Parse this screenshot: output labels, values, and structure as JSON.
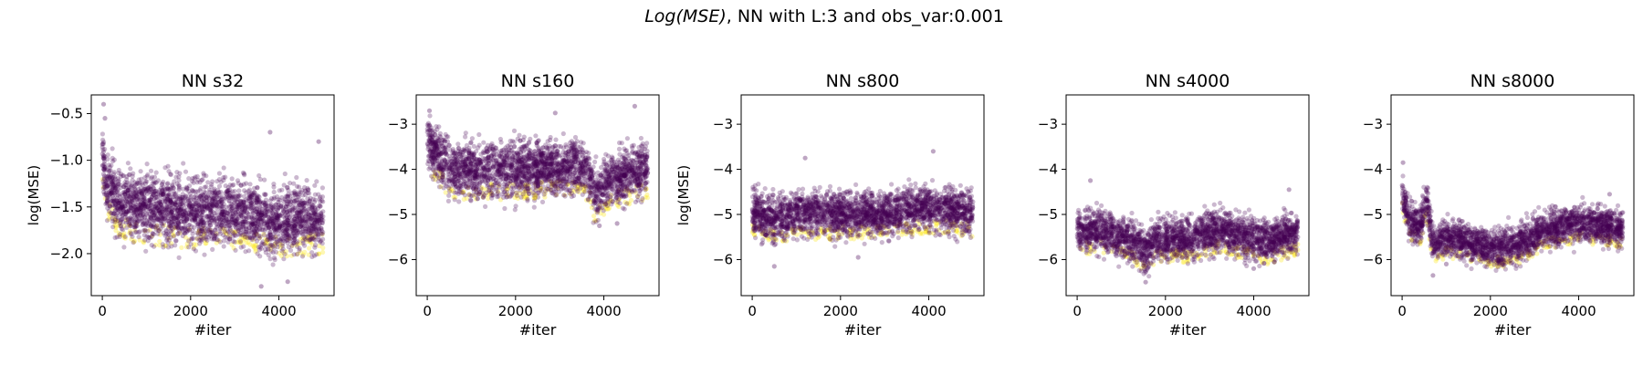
{
  "figure": {
    "suptitle_italic": "Log(MSE)",
    "suptitle_rest": ", NN with L:3 and obs_var:0.001"
  },
  "colors": {
    "main": "#440154",
    "low": "#fde725",
    "frame": "#000000"
  },
  "chart_data": [
    {
      "type": "scatter",
      "title": "NN s32",
      "xlabel": "#iter",
      "ylabel": "log(MSE)",
      "xlim": [
        -250,
        5250
      ],
      "ylim": [
        -2.45,
        -0.3
      ],
      "xticks": [
        0,
        2000,
        4000
      ],
      "yticks": [
        -2.0,
        -1.5,
        -1.0,
        -0.5
      ],
      "ytick_labels": [
        "−2.0",
        "−1.5",
        "−1.0",
        "−0.5"
      ],
      "series_points": 5000,
      "trend": [
        [
          0,
          -0.9
        ],
        [
          100,
          -1.25
        ],
        [
          400,
          -1.45
        ],
        [
          1000,
          -1.5
        ],
        [
          2000,
          -1.55
        ],
        [
          3000,
          -1.55
        ],
        [
          4000,
          -1.65
        ],
        [
          5000,
          -1.6
        ]
      ],
      "spread": 0.25,
      "outliers_top": [
        [
          30,
          -0.4
        ],
        [
          60,
          -0.55
        ],
        [
          3800,
          -0.7
        ],
        [
          4900,
          -0.8
        ]
      ],
      "outliers_bottom": [
        [
          3600,
          -2.35
        ],
        [
          4200,
          -2.3
        ]
      ]
    },
    {
      "type": "scatter",
      "title": "NN s160",
      "xlabel": "#iter",
      "ylabel": "",
      "xlim": [
        -250,
        5250
      ],
      "ylim": [
        -6.8,
        -2.35
      ],
      "xticks": [
        0,
        2000,
        4000
      ],
      "yticks": [
        -6,
        -5,
        -4,
        -3
      ],
      "ytick_labels": [
        "−6",
        "−5",
        "−4",
        "−3"
      ],
      "series_points": 5000,
      "trend": [
        [
          0,
          -3.3
        ],
        [
          150,
          -3.6
        ],
        [
          500,
          -3.95
        ],
        [
          1000,
          -4.05
        ],
        [
          2000,
          -4.0
        ],
        [
          3000,
          -3.95
        ],
        [
          3600,
          -4.0
        ],
        [
          3800,
          -4.5
        ],
        [
          4200,
          -4.2
        ],
        [
          5000,
          -4.0
        ]
      ],
      "spread": 0.42,
      "outliers_top": [
        [
          50,
          -2.7
        ],
        [
          4700,
          -2.6
        ],
        [
          2900,
          -2.75
        ]
      ],
      "outliers_bottom": [
        [
          3900,
          -5.25
        ],
        [
          4300,
          -5.2
        ]
      ]
    },
    {
      "type": "scatter",
      "title": "NN s800",
      "xlabel": "#iter",
      "ylabel": "log(MSE)",
      "xlim": [
        -250,
        5250
      ],
      "ylim": [
        -6.8,
        -2.35
      ],
      "xticks": [
        0,
        2000,
        4000
      ],
      "yticks": [
        -6,
        -5,
        -4,
        -3
      ],
      "ytick_labels": [
        "−6",
        "−5",
        "−4",
        "−3"
      ],
      "series_points": 5000,
      "trend": [
        [
          0,
          -4.9
        ],
        [
          300,
          -5.1
        ],
        [
          1000,
          -5.0
        ],
        [
          2000,
          -5.0
        ],
        [
          3000,
          -5.0
        ],
        [
          4000,
          -4.85
        ],
        [
          5000,
          -4.95
        ]
      ],
      "spread": 0.35,
      "outliers_top": [
        [
          1200,
          -3.75
        ],
        [
          4100,
          -3.6
        ]
      ],
      "outliers_bottom": [
        [
          500,
          -6.15
        ],
        [
          2400,
          -5.95
        ]
      ]
    },
    {
      "type": "scatter",
      "title": "NN s4000",
      "xlabel": "#iter",
      "ylabel": "",
      "xlim": [
        -250,
        5250
      ],
      "ylim": [
        -6.8,
        -2.35
      ],
      "xticks": [
        0,
        2000,
        4000
      ],
      "yticks": [
        -6,
        -5,
        -4,
        -3
      ],
      "ytick_labels": [
        "−6",
        "−5",
        "−4",
        "−3"
      ],
      "series_points": 5000,
      "trend": [
        [
          0,
          -5.4
        ],
        [
          500,
          -5.35
        ],
        [
          1300,
          -5.6
        ],
        [
          1550,
          -5.85
        ],
        [
          1800,
          -5.55
        ],
        [
          2500,
          -5.55
        ],
        [
          3200,
          -5.35
        ],
        [
          3800,
          -5.5
        ],
        [
          4300,
          -5.6
        ],
        [
          5000,
          -5.4
        ]
      ],
      "spread": 0.32,
      "outliers_top": [
        [
          300,
          -4.25
        ],
        [
          4800,
          -4.45
        ]
      ],
      "outliers_bottom": [
        [
          1550,
          -6.5
        ],
        [
          4000,
          -6.2
        ]
      ]
    },
    {
      "type": "scatter",
      "title": "NN s8000",
      "xlabel": "#iter",
      "ylabel": "",
      "xlim": [
        -250,
        5250
      ],
      "ylim": [
        -6.8,
        -2.35
      ],
      "xticks": [
        0,
        2000,
        4000
      ],
      "yticks": [
        -6,
        -5,
        -4,
        -3
      ],
      "ytick_labels": [
        "−6",
        "−5",
        "−4",
        "−3"
      ],
      "series_points": 5000,
      "trend": [
        [
          0,
          -4.5
        ],
        [
          150,
          -5.1
        ],
        [
          400,
          -5.3
        ],
        [
          550,
          -4.6
        ],
        [
          700,
          -5.7
        ],
        [
          1000,
          -5.5
        ],
        [
          2000,
          -5.75
        ],
        [
          2600,
          -5.7
        ],
        [
          3200,
          -5.35
        ],
        [
          4000,
          -5.2
        ],
        [
          5000,
          -5.3
        ]
      ],
      "spread": 0.28,
      "outliers_top": [
        [
          20,
          -3.85
        ],
        [
          4700,
          -4.55
        ]
      ],
      "outliers_bottom": [
        [
          700,
          -6.35
        ],
        [
          1000,
          -6.1
        ]
      ]
    }
  ]
}
